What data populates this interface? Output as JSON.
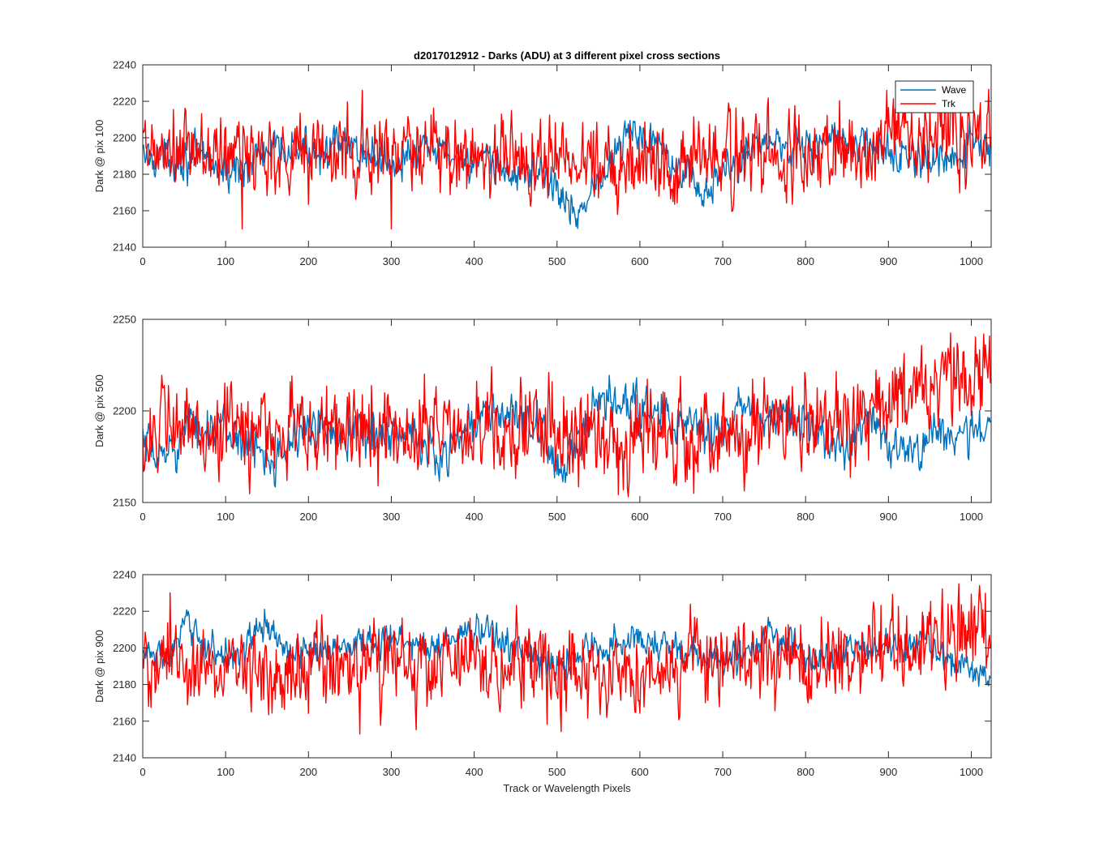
{
  "figure": {
    "title": "d2017012912 - Darks (ADU) at 3 different pixel cross sections",
    "xlabel": "Track or Wavelength Pixels"
  },
  "colors": {
    "wave": "#0072BD",
    "trk": "#FF0000",
    "axis": "#262626"
  },
  "legend": {
    "placement": "top-right",
    "entries": [
      "Wave",
      "Trk"
    ]
  },
  "chart_data": [
    {
      "type": "line",
      "ylabel": "Dark @ pix 100",
      "xlim": [
        0,
        1024
      ],
      "ylim": [
        2140,
        2240
      ],
      "xticks": [
        0,
        100,
        200,
        300,
        400,
        500,
        600,
        700,
        800,
        900,
        1000
      ],
      "yticks": [
        2140,
        2160,
        2180,
        2200,
        2220,
        2240
      ],
      "grid": false,
      "series": [
        {
          "name": "Wave",
          "mean_profile": [
            [
              0,
              2190
            ],
            [
              80,
              2188
            ],
            [
              100,
              2180
            ],
            [
              150,
              2192
            ],
            [
              250,
              2195
            ],
            [
              300,
              2186
            ],
            [
              350,
              2194
            ],
            [
              400,
              2187
            ],
            [
              450,
              2180
            ],
            [
              480,
              2182
            ],
            [
              500,
              2172
            ],
            [
              520,
              2158
            ],
            [
              550,
              2175
            ],
            [
              570,
              2190
            ],
            [
              590,
              2204
            ],
            [
              620,
              2200
            ],
            [
              640,
              2190
            ],
            [
              680,
              2168
            ],
            [
              700,
              2180
            ],
            [
              740,
              2198
            ],
            [
              800,
              2196
            ],
            [
              830,
              2200
            ],
            [
              900,
              2192
            ],
            [
              940,
              2188
            ],
            [
              970,
              2184
            ],
            [
              1000,
              2198
            ],
            [
              1024,
              2190
            ]
          ],
          "noise_amplitude": 6,
          "samples": 1024
        },
        {
          "name": "Trk",
          "mean_profile": [
            [
              0,
              2190
            ],
            [
              200,
              2192
            ],
            [
              400,
              2190
            ],
            [
              600,
              2188
            ],
            [
              800,
              2190
            ],
            [
              850,
              2192
            ],
            [
              900,
              2200
            ],
            [
              950,
              2205
            ],
            [
              1024,
              2205
            ]
          ],
          "noise_amplitude": 13,
          "samples": 1024,
          "extremes": [
            [
              265,
              2226
            ],
            [
              120,
              2150
            ],
            [
              300,
              2150
            ]
          ]
        }
      ]
    },
    {
      "type": "line",
      "ylabel": "Dark @ pix 500",
      "xlim": [
        0,
        1024
      ],
      "ylim": [
        2150,
        2250
      ],
      "xticks": [
        0,
        100,
        200,
        300,
        400,
        500,
        600,
        700,
        800,
        900,
        1000
      ],
      "yticks": [
        2150,
        2200,
        2250
      ],
      "grid": false,
      "series": [
        {
          "name": "Wave",
          "mean_profile": [
            [
              0,
              2180
            ],
            [
              20,
              2174
            ],
            [
              60,
              2192
            ],
            [
              100,
              2190
            ],
            [
              150,
              2175
            ],
            [
              200,
              2190
            ],
            [
              300,
              2188
            ],
            [
              340,
              2182
            ],
            [
              360,
              2174
            ],
            [
              380,
              2188
            ],
            [
              420,
              2200
            ],
            [
              460,
              2196
            ],
            [
              490,
              2180
            ],
            [
              510,
              2168
            ],
            [
              540,
              2195
            ],
            [
              560,
              2205
            ],
            [
              620,
              2200
            ],
            [
              660,
              2190
            ],
            [
              700,
              2188
            ],
            [
              720,
              2200
            ],
            [
              740,
              2198
            ],
            [
              800,
              2192
            ],
            [
              850,
              2180
            ],
            [
              880,
              2200
            ],
            [
              900,
              2182
            ],
            [
              920,
              2175
            ],
            [
              960,
              2192
            ],
            [
              980,
              2184
            ],
            [
              1000,
              2188
            ],
            [
              1024,
              2192
            ]
          ],
          "noise_amplitude": 7,
          "samples": 1024
        },
        {
          "name": "Trk",
          "mean_profile": [
            [
              0,
              2188
            ],
            [
              200,
              2190
            ],
            [
              400,
              2190
            ],
            [
              600,
              2187
            ],
            [
              800,
              2188
            ],
            [
              870,
              2195
            ],
            [
              900,
              2205
            ],
            [
              950,
              2212
            ],
            [
              1000,
              2215
            ],
            [
              1024,
              2218
            ]
          ],
          "noise_amplitude": 14,
          "samples": 1024,
          "extremes": [
            [
              1015,
              2242
            ],
            [
              665,
              2155
            ]
          ]
        }
      ]
    },
    {
      "type": "line",
      "ylabel": "Dark @ pix 900",
      "xlim": [
        0,
        1024
      ],
      "ylim": [
        2140,
        2240
      ],
      "xticks": [
        0,
        100,
        200,
        300,
        400,
        500,
        600,
        700,
        800,
        900,
        1000
      ],
      "yticks": [
        2140,
        2160,
        2180,
        2200,
        2220,
        2240
      ],
      "grid": false,
      "series": [
        {
          "name": "Wave",
          "mean_profile": [
            [
              0,
              2198
            ],
            [
              30,
              2194
            ],
            [
              55,
              2213
            ],
            [
              90,
              2196
            ],
            [
              120,
              2198
            ],
            [
              145,
              2213
            ],
            [
              180,
              2196
            ],
            [
              230,
              2200
            ],
            [
              260,
              2203
            ],
            [
              300,
              2205
            ],
            [
              340,
              2200
            ],
            [
              380,
              2207
            ],
            [
              420,
              2209
            ],
            [
              460,
              2196
            ],
            [
              500,
              2190
            ],
            [
              540,
              2200
            ],
            [
              560,
              2200
            ],
            [
              600,
              2206
            ],
            [
              640,
              2201
            ],
            [
              680,
              2193
            ],
            [
              720,
              2195
            ],
            [
              760,
              2208
            ],
            [
              780,
              2202
            ],
            [
              810,
              2192
            ],
            [
              860,
              2200
            ],
            [
              920,
              2200
            ],
            [
              940,
              2208
            ],
            [
              960,
              2196
            ],
            [
              1000,
              2188
            ],
            [
              1024,
              2182
            ]
          ],
          "noise_amplitude": 5,
          "samples": 1024
        },
        {
          "name": "Trk",
          "mean_profile": [
            [
              0,
              2190
            ],
            [
              200,
              2190
            ],
            [
              400,
              2190
            ],
            [
              600,
              2188
            ],
            [
              800,
              2192
            ],
            [
              900,
              2200
            ],
            [
              950,
              2208
            ],
            [
              1000,
              2210
            ],
            [
              1024,
              2210
            ]
          ],
          "noise_amplitude": 13,
          "samples": 1024,
          "extremes": [
            [
              33,
              2230
            ],
            [
              262,
              2153
            ],
            [
              1010,
              2234
            ]
          ]
        }
      ]
    }
  ]
}
